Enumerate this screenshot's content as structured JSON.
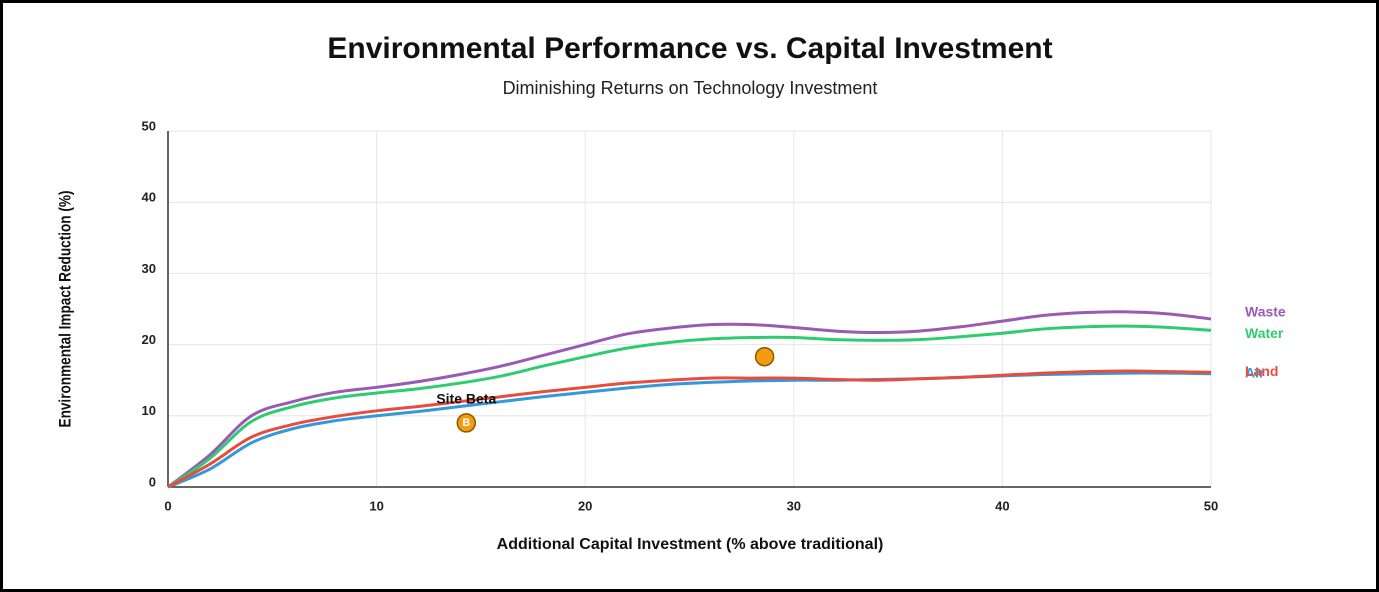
{
  "chart_data": {
    "type": "line",
    "title": "Environmental Performance vs. Capital Investment",
    "subtitle": "Diminishing Returns on Technology Investment",
    "xlabel": "Additional Capital Investment (% above traditional)",
    "ylabel": "Environmental Impact Reduction (%)",
    "x": [
      0,
      2,
      4,
      6,
      8,
      10,
      12,
      14,
      16,
      18,
      20,
      22,
      24,
      26,
      28,
      30,
      32,
      34,
      36,
      38,
      40,
      42,
      44,
      46,
      48,
      50
    ],
    "series": [
      {
        "name": "Waste",
        "color": "#9b59b6",
        "values": [
          0,
          4.5,
          10,
          12,
          13.3,
          14,
          14.8,
          15.8,
          17,
          18.5,
          20,
          21.5,
          22.3,
          22.8,
          22.8,
          22.4,
          21.9,
          21.7,
          21.9,
          22.5,
          23.3,
          24.1,
          24.5,
          24.6,
          24.3,
          23.6
        ]
      },
      {
        "name": "Water",
        "color": "#2ecc71",
        "values": [
          0,
          4,
          9.2,
          11.3,
          12.5,
          13.2,
          13.8,
          14.6,
          15.6,
          17,
          18.3,
          19.5,
          20.3,
          20.8,
          21,
          21,
          20.7,
          20.6,
          20.7,
          21.1,
          21.6,
          22.2,
          22.5,
          22.6,
          22.4,
          22
        ]
      },
      {
        "name": "Air",
        "color": "#3498db",
        "values": [
          0,
          2.5,
          6.2,
          8.2,
          9.3,
          10,
          10.6,
          11.3,
          12,
          12.7,
          13.3,
          13.9,
          14.4,
          14.7,
          14.9,
          15,
          15,
          15.1,
          15.2,
          15.4,
          15.6,
          15.8,
          15.9,
          16,
          16,
          15.9
        ]
      },
      {
        "name": "Land",
        "color": "#e74c3c",
        "values": [
          0,
          3.2,
          7,
          8.8,
          9.9,
          10.7,
          11.3,
          12,
          12.7,
          13.4,
          14,
          14.6,
          15,
          15.3,
          15.3,
          15.3,
          15.1,
          15,
          15.2,
          15.4,
          15.7,
          16,
          16.2,
          16.3,
          16.2,
          16.1
        ]
      }
    ],
    "points": [
      {
        "label": "Site Beta",
        "marker": "B",
        "x": 14.3,
        "y": 9,
        "color": "#f39c12"
      },
      {
        "x": 28.6,
        "y": 18.3,
        "color": "#f39c12"
      }
    ],
    "xlim": [
      0,
      50
    ],
    "xticks": [
      0,
      10,
      20,
      30,
      40,
      50
    ],
    "ylim": [
      0,
      50
    ],
    "yticks": [
      0,
      10,
      20,
      30,
      40,
      50
    ],
    "grid": true
  }
}
